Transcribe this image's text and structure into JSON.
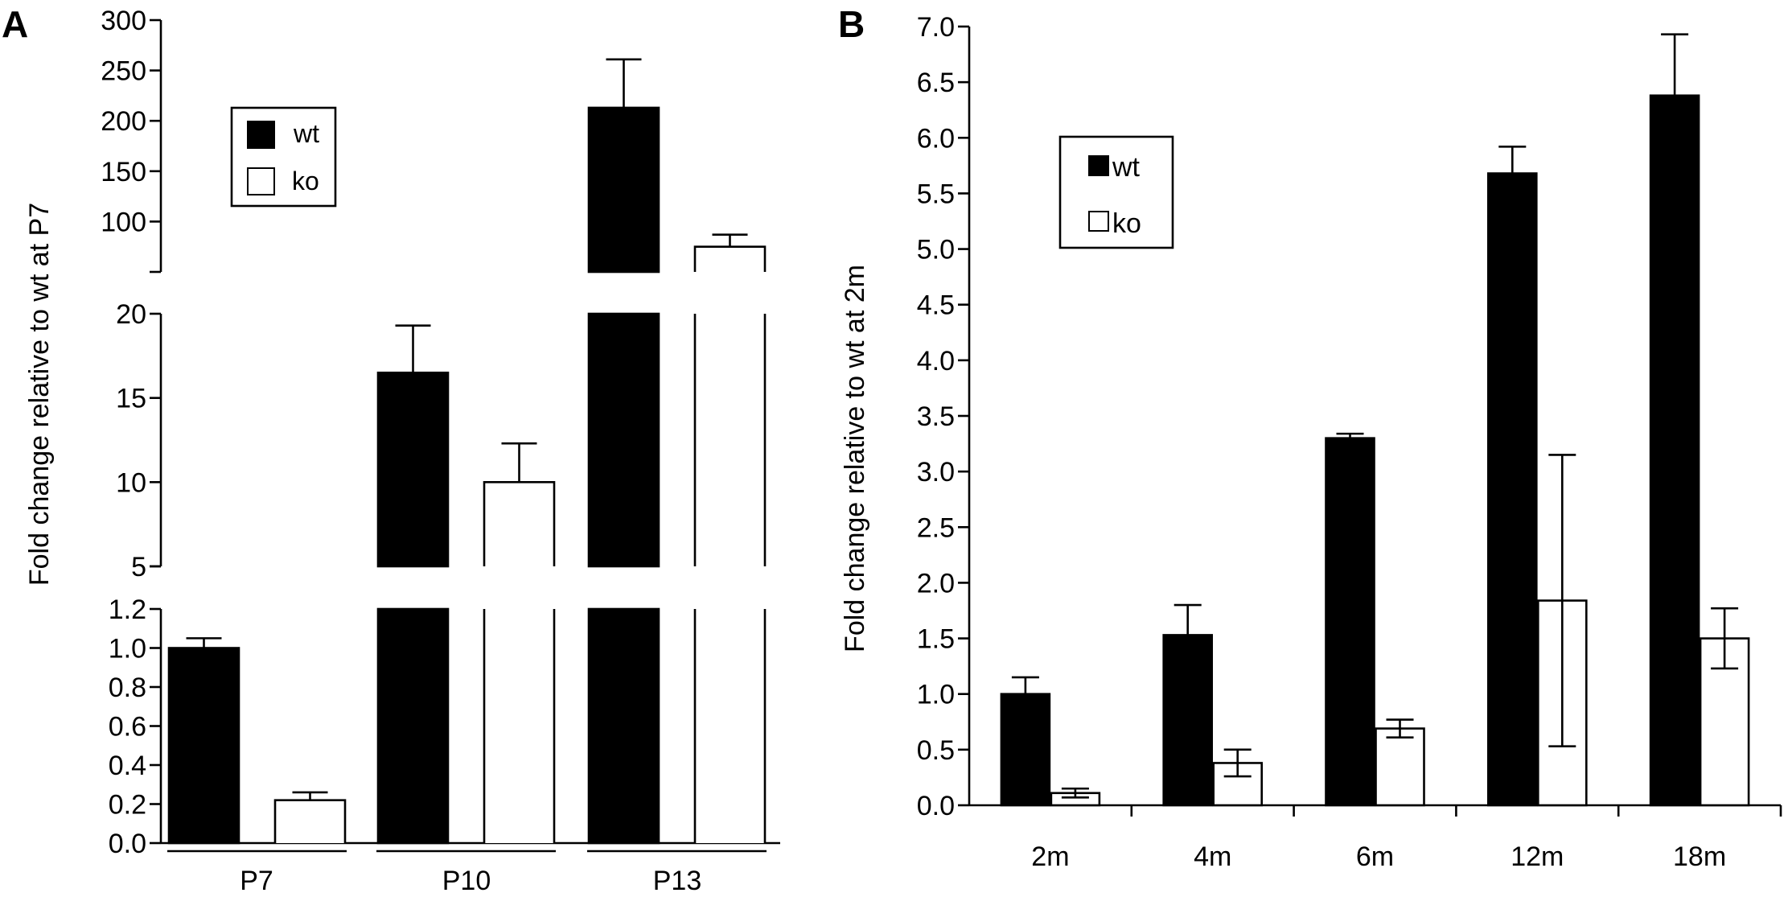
{
  "chart_data": [
    {
      "panel_label": "A",
      "type": "bar",
      "broken_axis": true,
      "categories": [
        "P7",
        "P10",
        "P13"
      ],
      "series": [
        {
          "name": "wt",
          "color": "#000000",
          "values": [
            1.0,
            16.5,
            213
          ],
          "error": [
            0.05,
            2.8,
            48
          ]
        },
        {
          "name": "ko",
          "color": "#ffffff",
          "values": [
            0.22,
            10.0,
            75
          ],
          "error": [
            0.04,
            2.3,
            12
          ]
        }
      ],
      "ylabel": "Fold change relative to wt at P7",
      "segments": [
        {
          "ylim": [
            0,
            1.2
          ],
          "ticks": [
            "0.0",
            "0.2",
            "0.4",
            "0.6",
            "0.8",
            "1.0",
            "1.2"
          ],
          "tick_values": [
            0,
            0.2,
            0.4,
            0.6,
            0.8,
            1.0,
            1.2
          ]
        },
        {
          "ylim": [
            5,
            20
          ],
          "ticks": [
            "5",
            "10",
            "15",
            "20"
          ],
          "tick_values": [
            5,
            10,
            15,
            20
          ]
        },
        {
          "ylim": [
            50,
            300
          ],
          "ticks": [
            "100",
            "150",
            "200",
            "250",
            "300"
          ],
          "tick_values": [
            100,
            150,
            200,
            250,
            300
          ]
        }
      ],
      "legend": {
        "placement": "upper-left",
        "entries": [
          "wt",
          "ko"
        ]
      }
    },
    {
      "panel_label": "B",
      "type": "bar",
      "categories": [
        "2m",
        "4m",
        "6m",
        "12m",
        "18m"
      ],
      "series": [
        {
          "name": "wt",
          "color": "#000000",
          "values": [
            1.0,
            1.53,
            3.3,
            5.68,
            6.38
          ],
          "error": [
            0.15,
            0.27,
            0.04,
            0.24,
            0.55
          ]
        },
        {
          "name": "ko",
          "color": "#ffffff",
          "values": [
            0.11,
            0.38,
            0.69,
            1.84,
            1.5
          ],
          "error": [
            0.04,
            0.12,
            0.08,
            1.31,
            0.27
          ]
        }
      ],
      "ylabel": "Fold change relative to wt at 2m",
      "ylim": [
        0,
        7.0
      ],
      "ticks": [
        "0.0",
        "0.5",
        "1.0",
        "1.5",
        "2.0",
        "2.5",
        "3.0",
        "3.5",
        "4.0",
        "4.5",
        "5.0",
        "5.5",
        "6.0",
        "6.5",
        "7.0"
      ],
      "tick_values": [
        0,
        0.5,
        1.0,
        1.5,
        2.0,
        2.5,
        3.0,
        3.5,
        4.0,
        4.5,
        5.0,
        5.5,
        6.0,
        6.5,
        7.0
      ],
      "legend": {
        "placement": "upper-left",
        "entries": [
          "wt",
          "ko"
        ]
      }
    }
  ]
}
